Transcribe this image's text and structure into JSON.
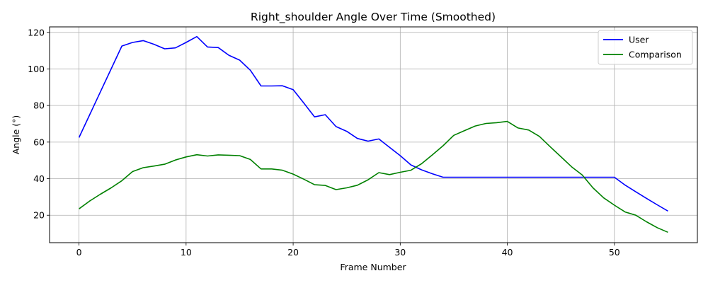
{
  "chart_data": {
    "type": "line",
    "title": "Right_shoulder Angle Over Time (Smoothed)",
    "xlabel": "Frame Number",
    "ylabel": "Angle (°)",
    "xlim": [
      -2.75,
      57.75
    ],
    "ylim": [
      5,
      123
    ],
    "xticks": [
      0,
      10,
      20,
      30,
      40,
      50
    ],
    "yticks": [
      20,
      40,
      60,
      80,
      100,
      120
    ],
    "grid": true,
    "legend_position": "top-right",
    "x": [
      0,
      1,
      2,
      3,
      4,
      5,
      6,
      7,
      8,
      9,
      10,
      11,
      12,
      13,
      14,
      15,
      16,
      17,
      18,
      19,
      20,
      21,
      22,
      23,
      24,
      25,
      26,
      27,
      28,
      29,
      30,
      31,
      32,
      33,
      34,
      35,
      36,
      37,
      38,
      39,
      40,
      41,
      42,
      43,
      44,
      45,
      46,
      47,
      48,
      49,
      50,
      51,
      52,
      53,
      54,
      55
    ],
    "series": [
      {
        "name": "User",
        "color": "#0000ff",
        "values": [
          62.5,
          75.0,
          87.5,
          100.0,
          112.5,
          114.5,
          115.5,
          113.5,
          111.0,
          111.5,
          114.5,
          117.7,
          112.0,
          111.7,
          107.5,
          104.8,
          99.3,
          90.7,
          90.7,
          90.8,
          88.7,
          81.3,
          73.8,
          75.0,
          68.5,
          65.9,
          62.0,
          60.5,
          61.7,
          57.1,
          52.6,
          47.5,
          44.8,
          42.7,
          40.8,
          40.8,
          40.8,
          40.8,
          40.8,
          40.8,
          40.8,
          40.8,
          40.8,
          40.8,
          40.8,
          40.8,
          40.8,
          40.8,
          40.8,
          40.8,
          40.8,
          36.5,
          32.8,
          29.2,
          25.7,
          22.3
        ]
      },
      {
        "name": "Comparison",
        "color": "#008000",
        "values": [
          23.5,
          27.8,
          31.5,
          35.0,
          38.9,
          43.9,
          46.0,
          46.9,
          47.9,
          50.2,
          51.9,
          53.1,
          52.4,
          53.0,
          52.8,
          52.6,
          50.5,
          45.3,
          45.3,
          44.6,
          42.5,
          39.7,
          36.7,
          36.3,
          34.0,
          35.0,
          36.4,
          39.4,
          43.3,
          42.2,
          43.5,
          44.6,
          48.2,
          53.0,
          58.0,
          63.7,
          66.3,
          68.8,
          70.2,
          70.6,
          71.3,
          67.7,
          66.6,
          63.1,
          57.5,
          52.0,
          46.5,
          42.0,
          35.0,
          29.5,
          25.5,
          21.8,
          20.0,
          16.4,
          13.2,
          10.7
        ]
      }
    ]
  }
}
